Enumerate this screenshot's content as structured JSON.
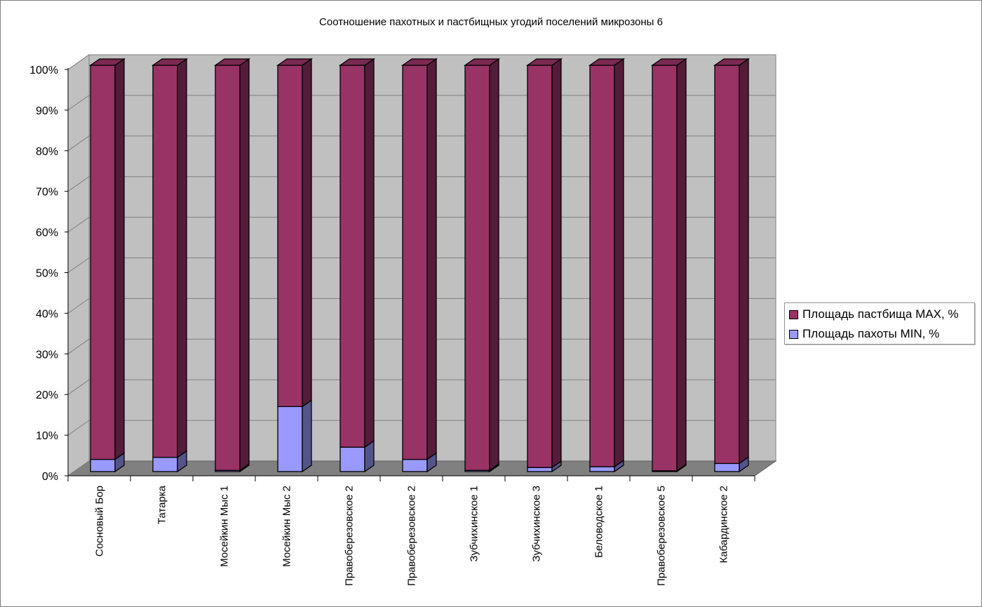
{
  "chart_data": {
    "type": "bar",
    "stacked": "percent",
    "three_d": true,
    "title": "Соотношение пахотных и пастбищных угодий поселений микрозоны 6",
    "xlabel": "",
    "ylabel": "",
    "ylim": [
      0,
      100
    ],
    "yticks": [
      "0%",
      "10%",
      "20%",
      "30%",
      "40%",
      "50%",
      "60%",
      "70%",
      "80%",
      "90%",
      "100%"
    ],
    "grid": true,
    "legend_position": "right",
    "categories": [
      "Сосновый Бор",
      "Татарка",
      "Мосейкин Мыс 1",
      "Мосейкин Мыс 2",
      "Правоберезовское 2",
      "Правоберезовское 2",
      "Зубчихинское 1",
      "Зубчихинское 3",
      "Беловодское 1",
      "Правоберезовское 5",
      "Кабардинское 2"
    ],
    "series": [
      {
        "name": "Площадь пахоты MIN, %",
        "color": "#9999ff",
        "values": [
          3,
          3.5,
          0.3,
          16,
          6,
          3,
          0.3,
          1,
          1.2,
          0.2,
          2
        ]
      },
      {
        "name": "Площадь пастбища MAX, %",
        "color": "#993366",
        "values": [
          97,
          96.5,
          99.7,
          84,
          94,
          97,
          99.7,
          99,
          98.8,
          99.8,
          98
        ]
      }
    ]
  }
}
